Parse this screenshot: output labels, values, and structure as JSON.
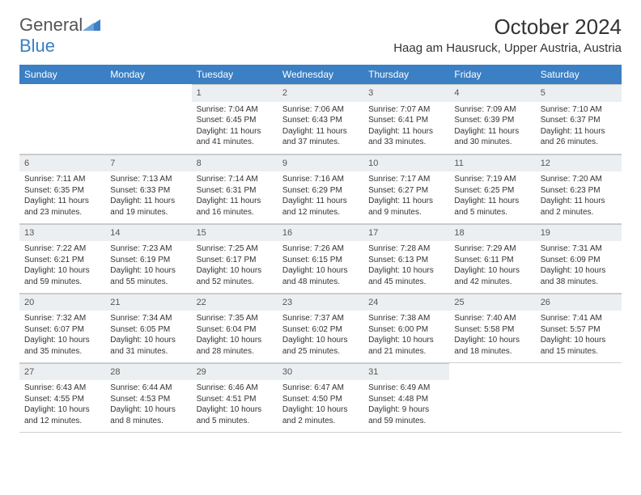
{
  "logo": {
    "word1": "General",
    "word2": "Blue"
  },
  "title": "October 2024",
  "location": "Haag am Hausruck, Upper Austria, Austria",
  "colors": {
    "header_bg": "#3b7fc4",
    "header_text": "#ffffff",
    "daynum_bg": "#eceff1",
    "border": "#d0d0d0",
    "text": "#333333",
    "logo_gray": "#555555",
    "logo_blue": "#3b7fc4",
    "background": "#ffffff"
  },
  "fonts": {
    "title_pt": 26,
    "location_pt": 15,
    "header_pt": 12,
    "daynum_pt": 11,
    "body_pt": 10
  },
  "weekdays": [
    "Sunday",
    "Monday",
    "Tuesday",
    "Wednesday",
    "Thursday",
    "Friday",
    "Saturday"
  ],
  "weeks": [
    [
      null,
      null,
      {
        "n": "1",
        "sr": "Sunrise: 7:04 AM",
        "ss": "Sunset: 6:45 PM",
        "dl": "Daylight: 11 hours and 41 minutes."
      },
      {
        "n": "2",
        "sr": "Sunrise: 7:06 AM",
        "ss": "Sunset: 6:43 PM",
        "dl": "Daylight: 11 hours and 37 minutes."
      },
      {
        "n": "3",
        "sr": "Sunrise: 7:07 AM",
        "ss": "Sunset: 6:41 PM",
        "dl": "Daylight: 11 hours and 33 minutes."
      },
      {
        "n": "4",
        "sr": "Sunrise: 7:09 AM",
        "ss": "Sunset: 6:39 PM",
        "dl": "Daylight: 11 hours and 30 minutes."
      },
      {
        "n": "5",
        "sr": "Sunrise: 7:10 AM",
        "ss": "Sunset: 6:37 PM",
        "dl": "Daylight: 11 hours and 26 minutes."
      }
    ],
    [
      {
        "n": "6",
        "sr": "Sunrise: 7:11 AM",
        "ss": "Sunset: 6:35 PM",
        "dl": "Daylight: 11 hours and 23 minutes."
      },
      {
        "n": "7",
        "sr": "Sunrise: 7:13 AM",
        "ss": "Sunset: 6:33 PM",
        "dl": "Daylight: 11 hours and 19 minutes."
      },
      {
        "n": "8",
        "sr": "Sunrise: 7:14 AM",
        "ss": "Sunset: 6:31 PM",
        "dl": "Daylight: 11 hours and 16 minutes."
      },
      {
        "n": "9",
        "sr": "Sunrise: 7:16 AM",
        "ss": "Sunset: 6:29 PM",
        "dl": "Daylight: 11 hours and 12 minutes."
      },
      {
        "n": "10",
        "sr": "Sunrise: 7:17 AM",
        "ss": "Sunset: 6:27 PM",
        "dl": "Daylight: 11 hours and 9 minutes."
      },
      {
        "n": "11",
        "sr": "Sunrise: 7:19 AM",
        "ss": "Sunset: 6:25 PM",
        "dl": "Daylight: 11 hours and 5 minutes."
      },
      {
        "n": "12",
        "sr": "Sunrise: 7:20 AM",
        "ss": "Sunset: 6:23 PM",
        "dl": "Daylight: 11 hours and 2 minutes."
      }
    ],
    [
      {
        "n": "13",
        "sr": "Sunrise: 7:22 AM",
        "ss": "Sunset: 6:21 PM",
        "dl": "Daylight: 10 hours and 59 minutes."
      },
      {
        "n": "14",
        "sr": "Sunrise: 7:23 AM",
        "ss": "Sunset: 6:19 PM",
        "dl": "Daylight: 10 hours and 55 minutes."
      },
      {
        "n": "15",
        "sr": "Sunrise: 7:25 AM",
        "ss": "Sunset: 6:17 PM",
        "dl": "Daylight: 10 hours and 52 minutes."
      },
      {
        "n": "16",
        "sr": "Sunrise: 7:26 AM",
        "ss": "Sunset: 6:15 PM",
        "dl": "Daylight: 10 hours and 48 minutes."
      },
      {
        "n": "17",
        "sr": "Sunrise: 7:28 AM",
        "ss": "Sunset: 6:13 PM",
        "dl": "Daylight: 10 hours and 45 minutes."
      },
      {
        "n": "18",
        "sr": "Sunrise: 7:29 AM",
        "ss": "Sunset: 6:11 PM",
        "dl": "Daylight: 10 hours and 42 minutes."
      },
      {
        "n": "19",
        "sr": "Sunrise: 7:31 AM",
        "ss": "Sunset: 6:09 PM",
        "dl": "Daylight: 10 hours and 38 minutes."
      }
    ],
    [
      {
        "n": "20",
        "sr": "Sunrise: 7:32 AM",
        "ss": "Sunset: 6:07 PM",
        "dl": "Daylight: 10 hours and 35 minutes."
      },
      {
        "n": "21",
        "sr": "Sunrise: 7:34 AM",
        "ss": "Sunset: 6:05 PM",
        "dl": "Daylight: 10 hours and 31 minutes."
      },
      {
        "n": "22",
        "sr": "Sunrise: 7:35 AM",
        "ss": "Sunset: 6:04 PM",
        "dl": "Daylight: 10 hours and 28 minutes."
      },
      {
        "n": "23",
        "sr": "Sunrise: 7:37 AM",
        "ss": "Sunset: 6:02 PM",
        "dl": "Daylight: 10 hours and 25 minutes."
      },
      {
        "n": "24",
        "sr": "Sunrise: 7:38 AM",
        "ss": "Sunset: 6:00 PM",
        "dl": "Daylight: 10 hours and 21 minutes."
      },
      {
        "n": "25",
        "sr": "Sunrise: 7:40 AM",
        "ss": "Sunset: 5:58 PM",
        "dl": "Daylight: 10 hours and 18 minutes."
      },
      {
        "n": "26",
        "sr": "Sunrise: 7:41 AM",
        "ss": "Sunset: 5:57 PM",
        "dl": "Daylight: 10 hours and 15 minutes."
      }
    ],
    [
      {
        "n": "27",
        "sr": "Sunrise: 6:43 AM",
        "ss": "Sunset: 4:55 PM",
        "dl": "Daylight: 10 hours and 12 minutes."
      },
      {
        "n": "28",
        "sr": "Sunrise: 6:44 AM",
        "ss": "Sunset: 4:53 PM",
        "dl": "Daylight: 10 hours and 8 minutes."
      },
      {
        "n": "29",
        "sr": "Sunrise: 6:46 AM",
        "ss": "Sunset: 4:51 PM",
        "dl": "Daylight: 10 hours and 5 minutes."
      },
      {
        "n": "30",
        "sr": "Sunrise: 6:47 AM",
        "ss": "Sunset: 4:50 PM",
        "dl": "Daylight: 10 hours and 2 minutes."
      },
      {
        "n": "31",
        "sr": "Sunrise: 6:49 AM",
        "ss": "Sunset: 4:48 PM",
        "dl": "Daylight: 9 hours and 59 minutes."
      },
      null,
      null
    ]
  ]
}
